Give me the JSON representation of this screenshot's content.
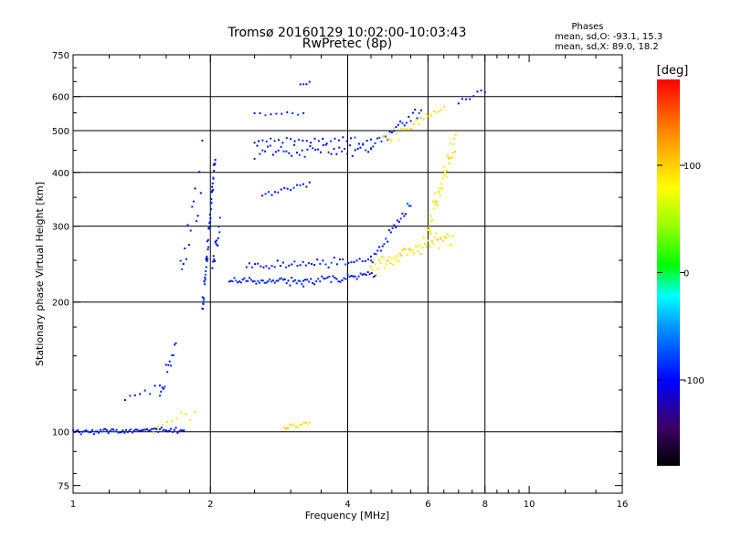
{
  "chart_data": {
    "type": "scatter",
    "title": "Tromsø 20160129 10:02:00-10:03:43",
    "subtitle": "RwPretec (8p)",
    "xlabel": "Frequency [MHz]",
    "ylabel": "Stationary phase Virtual Height [km]",
    "x_scale": "log",
    "y_scale": "log",
    "xlim": [
      1,
      16
    ],
    "ylim": [
      72,
      750
    ],
    "x_ticks": [
      1,
      2,
      4,
      6,
      8,
      10,
      16
    ],
    "x_tick_labels": [
      "1",
      "2",
      "4",
      "6",
      "8",
      "10",
      "16"
    ],
    "x_minor_ticks": [
      1.2,
      1.4,
      1.6,
      1.8,
      2.5,
      3,
      3.5,
      4.5,
      5,
      5.5,
      6.5,
      7,
      7.5,
      8.5,
      9,
      9.5,
      12,
      14
    ],
    "y_ticks": [
      75,
      100,
      200,
      300,
      400,
      500,
      600,
      750
    ],
    "y_tick_labels": [
      "75",
      "100",
      "200",
      "300",
      "400",
      "500",
      "600",
      "750"
    ],
    "y_minor_ticks": [
      80,
      90,
      125,
      150,
      175,
      250,
      350,
      450,
      550,
      650,
      700
    ],
    "grid_x": [
      2,
      4,
      6,
      8
    ],
    "grid_y": [
      100,
      200,
      300,
      400,
      500,
      600
    ],
    "phase_stats": {
      "heading": "Phases",
      "line_o": "mean, sd,O: -93.1, 15.3",
      "line_x": "mean, sd,X:  89.0, 18.2"
    },
    "colorbar": {
      "label": "[deg]",
      "min": -180,
      "max": 180,
      "ticks": [
        100,
        0,
        -100
      ],
      "tick_labels": [
        "100",
        "0",
        "-100"
      ]
    },
    "series": [
      {
        "name": "O",
        "mean_phase": -93.1,
        "sd_phase": 15.3,
        "segments": [
          {
            "f0": 1.0,
            "f1": 1.75,
            "h0": 100,
            "h1": 101,
            "n": 70,
            "spread": 0.012
          },
          {
            "f0": 1.55,
            "f1": 1.68,
            "h0": 120,
            "h1": 160,
            "n": 14,
            "spread": 0.04
          },
          {
            "f0": 1.3,
            "f1": 1.55,
            "h0": 118,
            "h1": 128,
            "n": 8,
            "spread": 0.03
          },
          {
            "f0": 1.72,
            "f1": 1.92,
            "h0": 240,
            "h1": 420,
            "n": 16,
            "spread": 0.15
          },
          {
            "f0": 1.92,
            "f1": 2.05,
            "h0": 190,
            "h1": 440,
            "n": 50,
            "spread": 0.05
          },
          {
            "f0": 2.02,
            "f1": 2.1,
            "h0": 240,
            "h1": 300,
            "n": 14,
            "spread": 0.05
          },
          {
            "f0": 2.2,
            "f1": 3.2,
            "h0": 225,
            "h1": 222,
            "n": 45,
            "spread": 0.02
          },
          {
            "f0": 3.2,
            "f1": 4.6,
            "h0": 222,
            "h1": 232,
            "n": 40,
            "spread": 0.02
          },
          {
            "f0": 2.4,
            "f1": 4.5,
            "h0": 242,
            "h1": 248,
            "n": 45,
            "spread": 0.02
          },
          {
            "f0": 4.5,
            "f1": 5.5,
            "h0": 248,
            "h1": 345,
            "n": 25,
            "spread": 0.03
          },
          {
            "f0": 2.5,
            "f1": 4.5,
            "h0": 445,
            "h1": 455,
            "n": 45,
            "spread": 0.03
          },
          {
            "f0": 2.5,
            "f1": 4.5,
            "h0": 470,
            "h1": 475,
            "n": 30,
            "spread": 0.02
          },
          {
            "f0": 4.5,
            "f1": 5.8,
            "h0": 460,
            "h1": 560,
            "n": 25,
            "spread": 0.03
          },
          {
            "f0": 2.6,
            "f1": 3.3,
            "h0": 355,
            "h1": 375,
            "n": 16,
            "spread": 0.02
          },
          {
            "f0": 2.5,
            "f1": 3.2,
            "h0": 545,
            "h1": 550,
            "n": 10,
            "spread": 0.01
          },
          {
            "f0": 7.0,
            "f1": 8.0,
            "h0": 575,
            "h1": 630,
            "n": 8,
            "spread": 0.02
          },
          {
            "f0": 3.15,
            "f1": 3.3,
            "h0": 640,
            "h1": 650,
            "n": 4,
            "spread": 0.01
          }
        ]
      },
      {
        "name": "X",
        "mean_phase": 89.0,
        "sd_phase": 18.2,
        "segments": [
          {
            "f0": 1.5,
            "f1": 1.85,
            "h0": 100,
            "h1": 112,
            "n": 10,
            "spread": 0.04
          },
          {
            "f0": 2.9,
            "f1": 3.3,
            "h0": 102,
            "h1": 104,
            "n": 14,
            "spread": 0.015
          },
          {
            "f0": 4.5,
            "f1": 6.8,
            "h0": 240,
            "h1": 290,
            "n": 60,
            "spread": 0.04
          },
          {
            "f0": 6.0,
            "f1": 6.9,
            "h0": 300,
            "h1": 480,
            "n": 40,
            "spread": 0.05
          },
          {
            "f0": 4.8,
            "f1": 6.5,
            "h0": 480,
            "h1": 560,
            "n": 25,
            "spread": 0.03
          }
        ]
      }
    ]
  }
}
